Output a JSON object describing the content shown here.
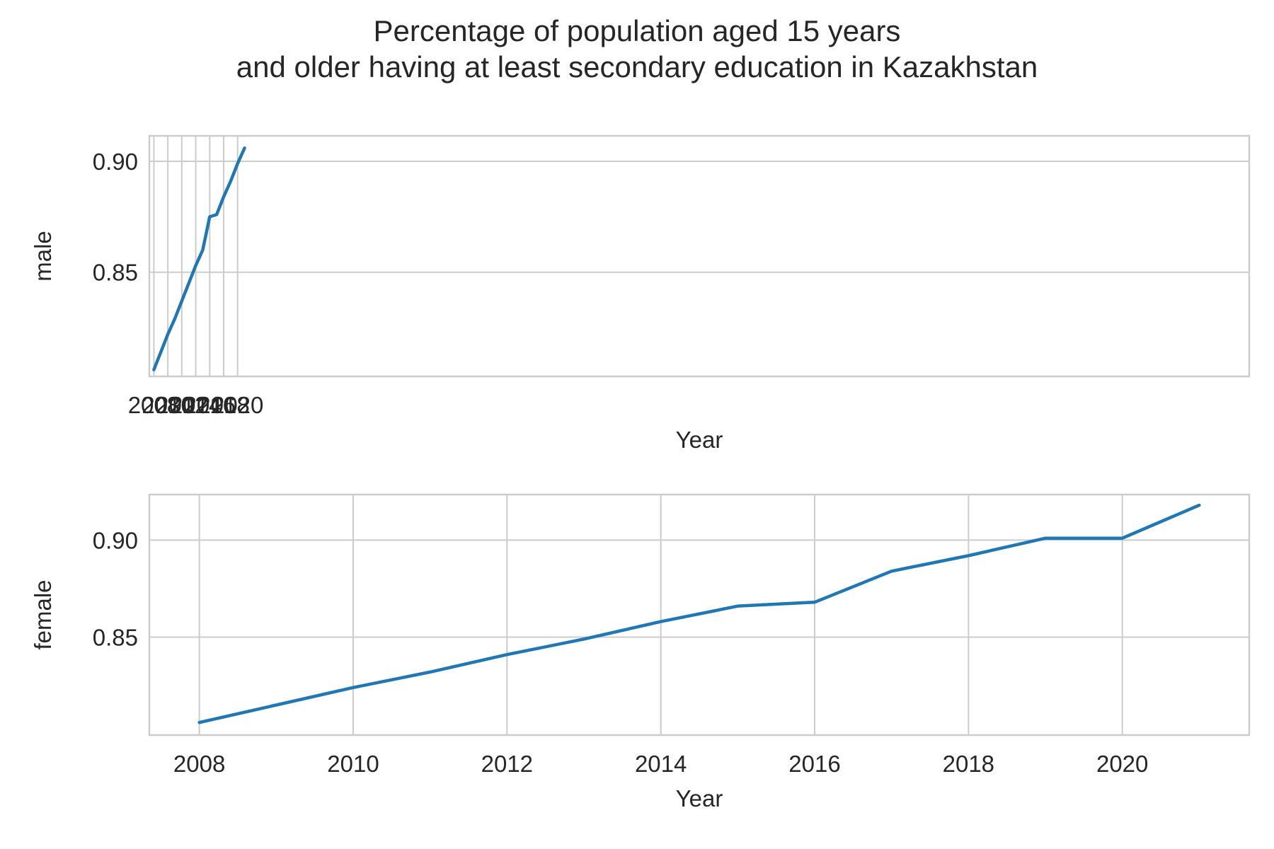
{
  "title_lines": [
    "Percentage of population aged 15 years",
    "and older having at least secondary education in Kazakhstan"
  ],
  "colors": {
    "line": "#1f77b4",
    "grid": "#cccccc",
    "text": "#262626"
  },
  "chart_data": [
    {
      "type": "line",
      "xlabel": "Year",
      "ylabel": "male",
      "xlim": [
        2007.35,
        2165.0
      ],
      "ylim": [
        0.803,
        0.9115
      ],
      "xticks": [
        2008,
        2010,
        2012,
        2014,
        2016,
        2018,
        2020
      ],
      "yticks": [
        0.85,
        0.9
      ],
      "ytick_labels": [
        "0.85",
        "0.90"
      ],
      "grid": true,
      "x": [
        2008,
        2009,
        2010,
        2011,
        2012,
        2013,
        2014,
        2015,
        2016,
        2017,
        2018,
        2019,
        2020,
        2021
      ],
      "series": [
        {
          "values": [
            0.806,
            0.814,
            0.822,
            0.829,
            0.837,
            0.845,
            0.853,
            0.86,
            0.875,
            0.876,
            0.884,
            0.891,
            0.899,
            0.906
          ]
        }
      ]
    },
    {
      "type": "line",
      "xlabel": "Year",
      "ylabel": "female",
      "xlim": [
        2007.35,
        2021.65
      ],
      "ylim": [
        0.7995,
        0.9235
      ],
      "xticks": [
        2008,
        2010,
        2012,
        2014,
        2016,
        2018,
        2020
      ],
      "yticks": [
        0.85,
        0.9
      ],
      "ytick_labels": [
        "0.85",
        "0.90"
      ],
      "grid": true,
      "x": [
        2008,
        2009,
        2010,
        2011,
        2012,
        2013,
        2014,
        2015,
        2016,
        2017,
        2018,
        2019,
        2020,
        2021
      ],
      "series": [
        {
          "values": [
            0.806,
            0.815,
            0.824,
            0.832,
            0.841,
            0.849,
            0.858,
            0.866,
            0.868,
            0.884,
            0.892,
            0.901,
            0.901,
            0.918
          ]
        }
      ]
    }
  ]
}
